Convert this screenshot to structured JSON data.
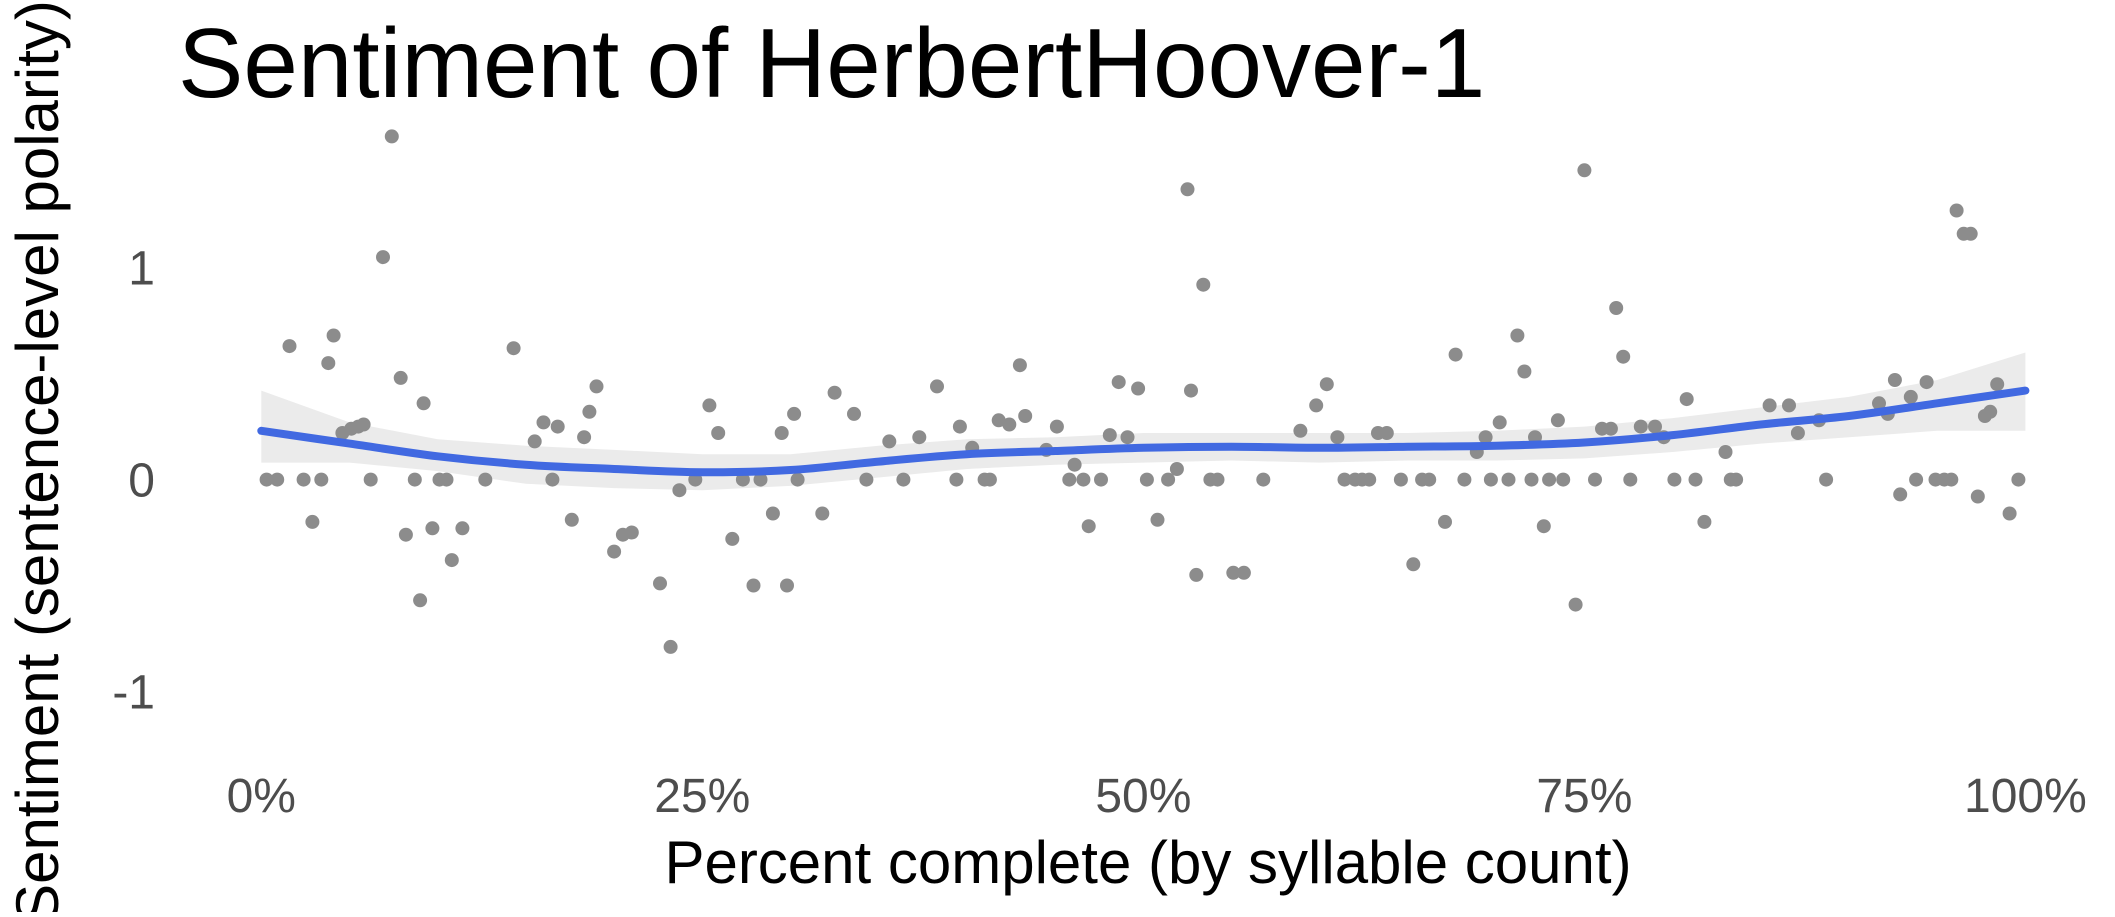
{
  "chart_data": {
    "type": "scatter",
    "title": "Sentiment of HerbertHoover-1",
    "xlabel": "Percent complete (by syllable count)",
    "ylabel": "Sentiment (sentence-level polarity)",
    "xlim": [
      -0.02,
      1.04
    ],
    "ylim": [
      -1.3,
      1.65
    ],
    "x_ticks": [
      {
        "value": 0,
        "label": "0%"
      },
      {
        "value": 0.25,
        "label": "25%"
      },
      {
        "value": 0.5,
        "label": "50%"
      },
      {
        "value": 0.75,
        "label": "75%"
      },
      {
        "value": 1,
        "label": "100%"
      }
    ],
    "y_ticks": [
      {
        "value": -1,
        "label": "-1"
      },
      {
        "value": 0,
        "label": "0"
      },
      {
        "value": 1,
        "label": "1"
      }
    ],
    "grid": false,
    "legend": "none",
    "colors": {
      "points": "#8c8c8c",
      "trend": "#4169e1",
      "band": "#ebebeb"
    },
    "points": [
      [
        0.003,
        0.0
      ],
      [
        0.009,
        0.0
      ],
      [
        0.016,
        0.63
      ],
      [
        0.024,
        0.0
      ],
      [
        0.029,
        -0.2
      ],
      [
        0.034,
        0.0
      ],
      [
        0.038,
        0.55
      ],
      [
        0.041,
        0.68
      ],
      [
        0.046,
        0.22
      ],
      [
        0.051,
        0.24
      ],
      [
        0.055,
        0.25
      ],
      [
        0.058,
        0.26
      ],
      [
        0.062,
        0.0
      ],
      [
        0.069,
        1.05
      ],
      [
        0.074,
        1.62
      ],
      [
        0.079,
        0.48
      ],
      [
        0.082,
        -0.26
      ],
      [
        0.087,
        0.0
      ],
      [
        0.09,
        -0.57
      ],
      [
        0.092,
        0.36
      ],
      [
        0.097,
        -0.23
      ],
      [
        0.101,
        0.0
      ],
      [
        0.105,
        0.0
      ],
      [
        0.108,
        -0.38
      ],
      [
        0.114,
        -0.23
      ],
      [
        0.127,
        0.0
      ],
      [
        0.143,
        0.62
      ],
      [
        0.155,
        0.18
      ],
      [
        0.16,
        0.27
      ],
      [
        0.165,
        0.0
      ],
      [
        0.168,
        0.25
      ],
      [
        0.176,
        -0.19
      ],
      [
        0.183,
        0.2
      ],
      [
        0.186,
        0.32
      ],
      [
        0.19,
        0.44
      ],
      [
        0.2,
        -0.34
      ],
      [
        0.205,
        -0.26
      ],
      [
        0.21,
        -0.25
      ],
      [
        0.226,
        -0.49
      ],
      [
        0.232,
        -0.79
      ],
      [
        0.237,
        -0.05
      ],
      [
        0.246,
        0.0
      ],
      [
        0.254,
        0.35
      ],
      [
        0.259,
        0.22
      ],
      [
        0.267,
        -0.28
      ],
      [
        0.273,
        0.0
      ],
      [
        0.279,
        -0.5
      ],
      [
        0.283,
        0.0
      ],
      [
        0.29,
        -0.16
      ],
      [
        0.295,
        0.22
      ],
      [
        0.298,
        -0.5
      ],
      [
        0.302,
        0.31
      ],
      [
        0.304,
        0.0
      ],
      [
        0.318,
        -0.16
      ],
      [
        0.325,
        0.41
      ],
      [
        0.336,
        0.31
      ],
      [
        0.343,
        0.0
      ],
      [
        0.356,
        0.18
      ],
      [
        0.364,
        0.0
      ],
      [
        0.373,
        0.2
      ],
      [
        0.383,
        0.44
      ],
      [
        0.394,
        0.0
      ],
      [
        0.396,
        0.25
      ],
      [
        0.403,
        0.15
      ],
      [
        0.41,
        0.0
      ],
      [
        0.413,
        0.0
      ],
      [
        0.418,
        0.28
      ],
      [
        0.424,
        0.26
      ],
      [
        0.43,
        0.54
      ],
      [
        0.433,
        0.3
      ],
      [
        0.445,
        0.14
      ],
      [
        0.451,
        0.25
      ],
      [
        0.458,
        0.0
      ],
      [
        0.461,
        0.07
      ],
      [
        0.466,
        0.0
      ],
      [
        0.469,
        -0.22
      ],
      [
        0.476,
        0.0
      ],
      [
        0.481,
        0.21
      ],
      [
        0.486,
        0.46
      ],
      [
        0.491,
        0.2
      ],
      [
        0.497,
        0.43
      ],
      [
        0.502,
        0.0
      ],
      [
        0.508,
        -0.19
      ],
      [
        0.514,
        0.0
      ],
      [
        0.519,
        0.05
      ],
      [
        0.525,
        1.37
      ],
      [
        0.527,
        0.42
      ],
      [
        0.53,
        -0.45
      ],
      [
        0.534,
        0.92
      ],
      [
        0.538,
        0.0
      ],
      [
        0.542,
        0.0
      ],
      [
        0.551,
        -0.44
      ],
      [
        0.557,
        -0.44
      ],
      [
        0.568,
        0.0
      ],
      [
        0.589,
        0.23
      ],
      [
        0.598,
        0.35
      ],
      [
        0.604,
        0.45
      ],
      [
        0.61,
        0.2
      ],
      [
        0.614,
        0.0
      ],
      [
        0.62,
        0.0
      ],
      [
        0.624,
        0.0
      ],
      [
        0.628,
        0.0
      ],
      [
        0.633,
        0.22
      ],
      [
        0.638,
        0.22
      ],
      [
        0.646,
        0.0
      ],
      [
        0.653,
        -0.4
      ],
      [
        0.658,
        0.0
      ],
      [
        0.662,
        0.0
      ],
      [
        0.671,
        -0.2
      ],
      [
        0.677,
        0.59
      ],
      [
        0.682,
        0.0
      ],
      [
        0.689,
        0.13
      ],
      [
        0.694,
        0.2
      ],
      [
        0.697,
        0.0
      ],
      [
        0.702,
        0.27
      ],
      [
        0.707,
        0.0
      ],
      [
        0.712,
        0.68
      ],
      [
        0.716,
        0.51
      ],
      [
        0.72,
        0.0
      ],
      [
        0.722,
        0.2
      ],
      [
        0.727,
        -0.22
      ],
      [
        0.73,
        0.0
      ],
      [
        0.735,
        0.28
      ],
      [
        0.738,
        0.0
      ],
      [
        0.745,
        -0.59
      ],
      [
        0.75,
        1.46
      ],
      [
        0.756,
        0.0
      ],
      [
        0.76,
        0.24
      ],
      [
        0.765,
        0.24
      ],
      [
        0.768,
        0.81
      ],
      [
        0.772,
        0.58
      ],
      [
        0.776,
        0.0
      ],
      [
        0.782,
        0.25
      ],
      [
        0.79,
        0.25
      ],
      [
        0.795,
        0.2
      ],
      [
        0.801,
        0.0
      ],
      [
        0.808,
        0.38
      ],
      [
        0.813,
        0.0
      ],
      [
        0.818,
        -0.2
      ],
      [
        0.83,
        0.13
      ],
      [
        0.833,
        0.0
      ],
      [
        0.836,
        0.0
      ],
      [
        0.855,
        0.35
      ],
      [
        0.866,
        0.35
      ],
      [
        0.871,
        0.22
      ],
      [
        0.883,
        0.28
      ],
      [
        0.887,
        0.0
      ],
      [
        0.917,
        0.36
      ],
      [
        0.922,
        0.31
      ],
      [
        0.926,
        0.47
      ],
      [
        0.929,
        -0.07
      ],
      [
        0.935,
        0.39
      ],
      [
        0.938,
        0.0
      ],
      [
        0.944,
        0.46
      ],
      [
        0.949,
        0.0
      ],
      [
        0.954,
        0.0
      ],
      [
        0.958,
        0.0
      ],
      [
        0.961,
        1.27
      ],
      [
        0.965,
        1.16
      ],
      [
        0.969,
        1.16
      ],
      [
        0.973,
        -0.08
      ],
      [
        0.977,
        0.3
      ],
      [
        0.98,
        0.32
      ],
      [
        0.984,
        0.45
      ],
      [
        0.991,
        -0.16
      ],
      [
        0.996,
        0.0
      ]
    ],
    "trend": [
      [
        0.0,
        0.23
      ],
      [
        0.05,
        0.17
      ],
      [
        0.1,
        0.11
      ],
      [
        0.15,
        0.07
      ],
      [
        0.2,
        0.05
      ],
      [
        0.25,
        0.035
      ],
      [
        0.3,
        0.045
      ],
      [
        0.35,
        0.085
      ],
      [
        0.4,
        0.12
      ],
      [
        0.45,
        0.135
      ],
      [
        0.5,
        0.15
      ],
      [
        0.55,
        0.155
      ],
      [
        0.6,
        0.15
      ],
      [
        0.65,
        0.155
      ],
      [
        0.7,
        0.16
      ],
      [
        0.75,
        0.175
      ],
      [
        0.8,
        0.21
      ],
      [
        0.85,
        0.26
      ],
      [
        0.9,
        0.3
      ],
      [
        0.95,
        0.36
      ],
      [
        1.0,
        0.42
      ]
    ],
    "band": [
      [
        0.0,
        0.08,
        0.42
      ],
      [
        0.05,
        0.08,
        0.27
      ],
      [
        0.1,
        0.04,
        0.19
      ],
      [
        0.15,
        -0.02,
        0.16
      ],
      [
        0.2,
        -0.04,
        0.14
      ],
      [
        0.25,
        -0.05,
        0.12
      ],
      [
        0.3,
        -0.03,
        0.12
      ],
      [
        0.35,
        0.01,
        0.16
      ],
      [
        0.4,
        0.05,
        0.19
      ],
      [
        0.45,
        0.07,
        0.2
      ],
      [
        0.5,
        0.08,
        0.22
      ],
      [
        0.55,
        0.09,
        0.22
      ],
      [
        0.6,
        0.08,
        0.22
      ],
      [
        0.65,
        0.09,
        0.22
      ],
      [
        0.7,
        0.09,
        0.23
      ],
      [
        0.75,
        0.1,
        0.25
      ],
      [
        0.8,
        0.13,
        0.29
      ],
      [
        0.85,
        0.17,
        0.34
      ],
      [
        0.9,
        0.2,
        0.39
      ],
      [
        0.95,
        0.23,
        0.47
      ],
      [
        1.0,
        0.23,
        0.6
      ]
    ]
  }
}
